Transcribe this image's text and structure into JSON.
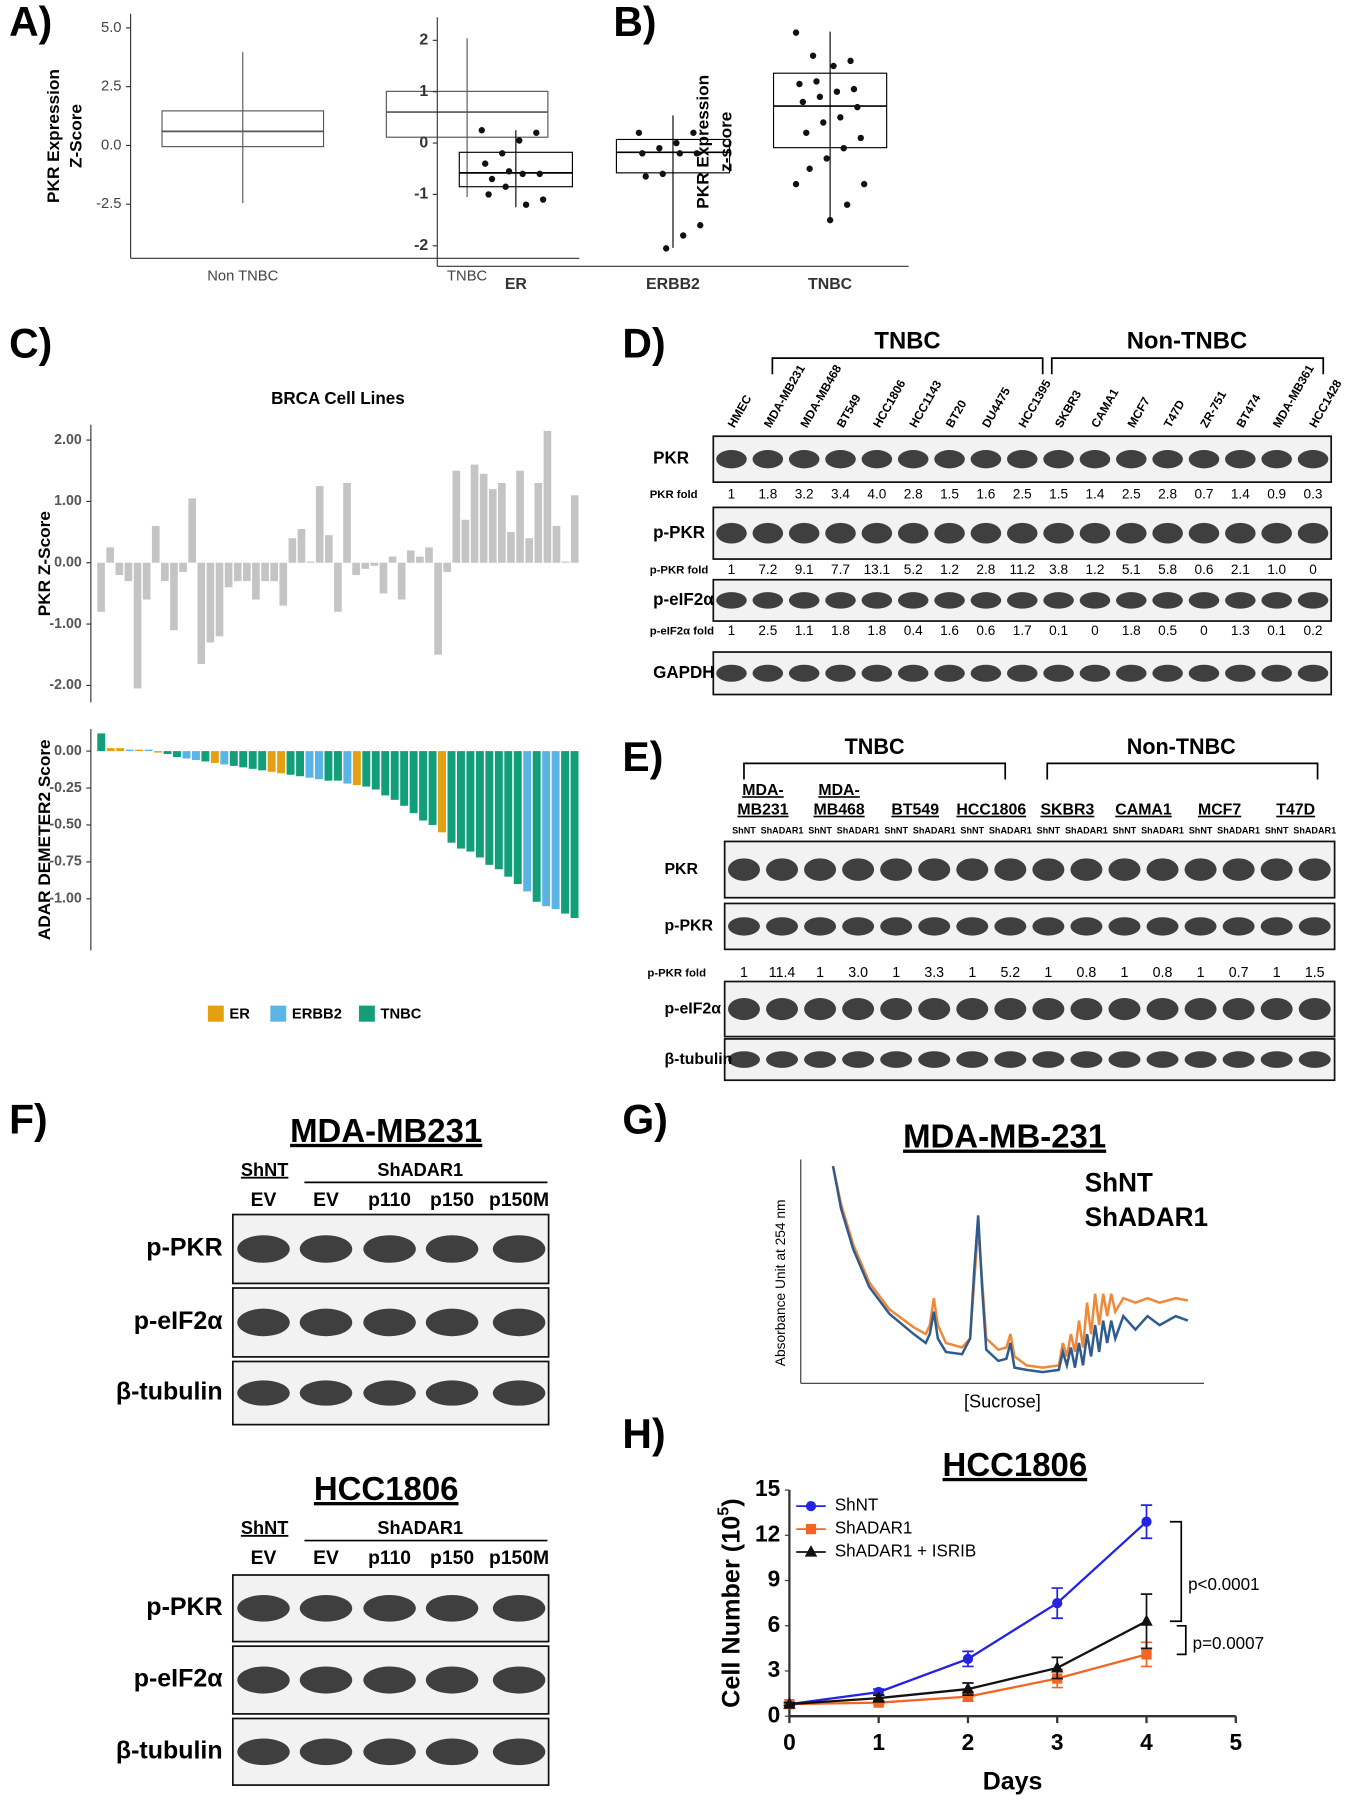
{
  "panel_labels": [
    "A)",
    "B)",
    "C)",
    "D)",
    "E)",
    "F)",
    "G)",
    "H)"
  ],
  "chart_data": [
    {
      "type": "box",
      "ylabel": [
        "PKR Expression",
        "Z-Score"
      ],
      "categories": [
        "Non TNBC",
        "TNBC"
      ],
      "boxes": [
        {
          "low": -2.45,
          "q1": -0.05,
          "median": 0.6,
          "q3": 1.47,
          "high": 3.97
        },
        {
          "low": -2.2,
          "q1": 0.35,
          "median": 1.42,
          "q3": 2.3,
          "high": 4.56
        }
      ],
      "ylim": [
        -4.8,
        5.6
      ],
      "yticks": [
        -2.5,
        {
          "value": 0,
          "label": "0.0"
        },
        2.5,
        {
          "value": 5,
          "label": "5.0"
        }
      ],
      "color": "#555555"
    },
    {
      "type": "box",
      "ylabel": [
        "PKR Expression",
        "z-score"
      ],
      "categories": [
        "ER",
        "ERBB2",
        "TNBC"
      ],
      "boxes": [
        {
          "low": -1.25,
          "q1": -0.85,
          "median": -0.58,
          "q3": -0.18,
          "high": 0.25
        },
        {
          "low": -2.04,
          "q1": -0.58,
          "median": -0.18,
          "q3": 0.07,
          "high": 0.54
        },
        {
          "low": -1.52,
          "q1": -0.09,
          "median": 0.72,
          "q3": 1.36,
          "high": 2.17
        }
      ],
      "points": [
        [
          0.25,
          0.2,
          0.05,
          -0.2,
          -0.4,
          -0.6,
          -0.6,
          -0.85,
          -1.0,
          -1.1,
          -1.2,
          -0.55,
          -0.7
        ],
        [
          0.2,
          0.2,
          0.0,
          -0.1,
          -0.2,
          -0.2,
          -0.2,
          -0.6,
          -0.65,
          -1.6,
          -1.8,
          -2.05
        ],
        [
          2.15,
          1.6,
          1.5,
          1.2,
          1.15,
          1.05,
          1.0,
          0.9,
          0.8,
          0.7,
          0.5,
          0.4,
          0.2,
          0.1,
          -0.1,
          -0.3,
          -0.5,
          -0.8,
          -1.2,
          -1.5,
          1.7,
          -0.8
        ]
      ],
      "ylim": [
        -2.4,
        2.45
      ],
      "yticks": [
        -2,
        -1,
        0,
        1,
        2
      ],
      "color": "#000000"
    },
    {
      "type": "bar",
      "title": "BRCA Cell Lines",
      "ylabel": "PKR Z-Score",
      "values": [
        -0.8,
        0.25,
        -0.2,
        -0.3,
        -2.05,
        -0.6,
        0.6,
        -0.3,
        -1.1,
        -0.15,
        1.05,
        -1.65,
        -1.3,
        -1.2,
        -0.4,
        -0.3,
        -0.3,
        -0.6,
        -0.3,
        -0.3,
        -0.7,
        0.4,
        0.55,
        0.02,
        1.25,
        0.45,
        -0.8,
        1.3,
        -0.2,
        -0.1,
        -0.05,
        -0.5,
        0.1,
        -0.6,
        0.2,
        0.1,
        0.25,
        -1.5,
        -0.15,
        1.5,
        0.7,
        1.6,
        1.45,
        1.2,
        1.3,
        0.5,
        1.5,
        0.4,
        1.3,
        2.15,
        0.6,
        0.02,
        1.1
      ],
      "color": "#c4c4c4",
      "ylim": [
        -2.28,
        2.25
      ],
      "yticks": [
        {
          "value": -2,
          "label": "-2.00"
        },
        {
          "value": -1,
          "label": "-1.00"
        },
        {
          "value": 0,
          "label": "0.00"
        },
        {
          "value": 1,
          "label": "1.00"
        },
        {
          "value": 2,
          "label": "2.00"
        }
      ]
    },
    {
      "type": "bar",
      "ylabel": "ADAR DEMETER2 Score",
      "values": [
        0.12,
        0.02,
        0.02,
        0.01,
        0.01,
        0.01,
        -0.01,
        -0.02,
        -0.04,
        -0.05,
        -0.06,
        -0.07,
        -0.08,
        -0.09,
        -0.1,
        -0.11,
        -0.12,
        -0.13,
        -0.14,
        -0.15,
        -0.16,
        -0.17,
        -0.18,
        -0.19,
        -0.2,
        -0.2,
        -0.22,
        -0.23,
        -0.24,
        -0.26,
        -0.3,
        -0.33,
        -0.37,
        -0.42,
        -0.47,
        -0.5,
        -0.55,
        -0.62,
        -0.66,
        -0.68,
        -0.72,
        -0.77,
        -0.8,
        -0.85,
        -0.9,
        -0.95,
        -1.02,
        -1.05,
        -1.07,
        -1.1,
        -1.13
      ],
      "groups": [
        "TNBC",
        "ER",
        "ER",
        "ERBB2",
        "ER",
        "ERBB2",
        "ER",
        "TNBC",
        "TNBC",
        "ERBB2",
        "ERBB2",
        "TNBC",
        "ER",
        "ERBB2",
        "TNBC",
        "TNBC",
        "TNBC",
        "TNBC",
        "ER",
        "ER",
        "TNBC",
        "TNBC",
        "ERBB2",
        "ERBB2",
        "TNBC",
        "TNBC",
        "ERBB2",
        "ER",
        "TNBC",
        "TNBC",
        "TNBC",
        "TNBC",
        "TNBC",
        "TNBC",
        "TNBC",
        "TNBC",
        "ER",
        "TNBC",
        "TNBC",
        "TNBC",
        "TNBC",
        "TNBC",
        "TNBC",
        "TNBC",
        "TNBC",
        "ERBB2",
        "TNBC",
        "ERBB2",
        "ERBB2",
        "TNBC",
        "TNBC"
      ],
      "legend": [
        {
          "name": "ER",
          "color": "#E3A010"
        },
        {
          "name": "ERBB2",
          "color": "#5AB4E5"
        },
        {
          "name": "TNBC",
          "color": "#129E78"
        }
      ],
      "legend_position": "bottom",
      "ylim": [
        -1.35,
        0.15
      ],
      "yticks": [
        {
          "value": -1,
          "label": "-1.00"
        },
        -0.75,
        {
          "value": -0.5,
          "label": "-0.50"
        },
        -0.25,
        {
          "value": 0,
          "label": "0.00"
        }
      ]
    },
    {
      "type": "line",
      "title": "MDA-MB-231",
      "xlabel": "[Sucrose]",
      "ylabel": "Absorbance Unit at 254 nm",
      "x": [
        8,
        10,
        13,
        17,
        22,
        28,
        31,
        32,
        33,
        34,
        36,
        40,
        42,
        43,
        44,
        45,
        46,
        49,
        51,
        52,
        53,
        56,
        60,
        64,
        65,
        66,
        67,
        68,
        69,
        70,
        71,
        72,
        73,
        74,
        75,
        76,
        77,
        78,
        80,
        83,
        86,
        89,
        93,
        96
      ],
      "series": [
        {
          "name": "ShNT",
          "color": "#F0883A",
          "values": [
            97,
            80,
            62,
            45,
            33,
            25,
            22,
            26,
            38,
            26,
            18,
            16,
            20,
            45,
            70,
            45,
            20,
            15,
            16,
            22,
            12,
            8,
            7,
            8,
            18,
            12,
            22,
            14,
            28,
            16,
            36,
            22,
            40,
            26,
            40,
            30,
            40,
            32,
            38,
            36,
            38,
            36,
            38,
            37
          ]
        },
        {
          "name": "ShADAR1",
          "color": "#2F5B8F",
          "values": [
            97,
            78,
            60,
            43,
            31,
            22,
            18,
            22,
            32,
            20,
            14,
            13,
            20,
            50,
            75,
            42,
            15,
            10,
            11,
            18,
            7,
            6,
            5,
            6,
            14,
            8,
            16,
            7,
            18,
            8,
            22,
            12,
            26,
            14,
            28,
            18,
            28,
            20,
            30,
            24,
            30,
            26,
            30,
            28
          ]
        }
      ],
      "xlim": [
        0,
        100
      ],
      "ylim": [
        0,
        100
      ]
    },
    {
      "type": "line",
      "title": "HCC1806",
      "xlabel": "Days",
      "ylabel": [
        "Cell Number (10",
        "5",
        ")"
      ],
      "x": [
        0,
        1,
        2,
        3,
        4
      ],
      "series": [
        {
          "name": "ShNT",
          "color": "#2323E0",
          "marker": "circle",
          "values": [
            0.8,
            1.6,
            3.8,
            7.5,
            12.9
          ],
          "errors": [
            0.1,
            0.2,
            0.5,
            1.0,
            1.1
          ]
        },
        {
          "name": "ShADAR1",
          "color": "#F26522",
          "marker": "square",
          "values": [
            0.8,
            0.9,
            1.3,
            2.5,
            4.1
          ],
          "errors": [
            0.1,
            0.1,
            0.3,
            0.6,
            0.8
          ]
        },
        {
          "name": "ShADAR1 + ISRIB",
          "color": "#111111",
          "marker": "triangle",
          "values": [
            0.8,
            1.2,
            1.8,
            3.2,
            6.3
          ],
          "errors": [
            0.1,
            0.2,
            0.4,
            0.7,
            1.8
          ]
        }
      ],
      "annotations": [
        "p<0.0001",
        "p=0.0007"
      ],
      "xlim": [
        0,
        5
      ],
      "ylim": [
        0,
        15
      ],
      "xticks": [
        0,
        1,
        2,
        3,
        4,
        5
      ],
      "yticks": [
        0,
        3,
        6,
        9,
        12,
        15
      ]
    }
  ],
  "blot_d": {
    "groups": [
      {
        "name": "TNBC",
        "color": "#000000"
      },
      {
        "name": "Non-TNBC",
        "color": "#4BB3E6"
      }
    ],
    "lanes": [
      "HMEC",
      "MDA-MB231",
      "MDA-MB468",
      "BT549",
      "HCC1806",
      "HCC1143",
      "BT20",
      "DU4475",
      "HCC1395",
      "SKBR3",
      "CAMA1",
      "MCF7",
      "T47D",
      "ZR-751",
      "BT474",
      "MDA-MB361",
      "HCC1428"
    ],
    "rows": [
      {
        "label": "PKR",
        "fold_label": "PKR fold",
        "folds": [
          "1",
          "1.8",
          "3.2",
          "3.4",
          "4.0",
          "2.8",
          "1.5",
          "1.6",
          "2.5",
          "1.5",
          "1.4",
          "2.5",
          "2.8",
          "0.7",
          "1.4",
          "0.9",
          "0.3"
        ]
      },
      {
        "label": "p-PKR",
        "fold_label": "p-PKR fold",
        "folds": [
          "1",
          "7.2",
          "9.1",
          "7.7",
          "13.1",
          "5.2",
          "1.2",
          "2.8",
          "11.2",
          "3.8",
          "1.2",
          "5.1",
          "5.8",
          "0.6",
          "2.1",
          "1.0",
          "0"
        ]
      },
      {
        "label": "p-eIF2α",
        "fold_label": "p-eIF2α fold",
        "folds": [
          "1",
          "2.5",
          "1.1",
          "1.8",
          "1.8",
          "0.4",
          "1.6",
          "0.6",
          "1.7",
          "0.1",
          "0",
          "1.8",
          "0.5",
          "0",
          "1.3",
          "0.1",
          "0.2"
        ]
      },
      {
        "label": "GAPDH"
      }
    ]
  },
  "blot_e": {
    "groups": [
      {
        "name": "TNBC",
        "color": "#000000"
      },
      {
        "name": "Non-TNBC",
        "color": "#4BB3E6"
      }
    ],
    "cell_lines": [
      [
        "MDA-",
        "MB231"
      ],
      [
        "MDA-",
        "MB468"
      ],
      [
        "BT549"
      ],
      [
        "HCC1806"
      ],
      [
        "SKBR3"
      ],
      [
        "CAMA1"
      ],
      [
        "MCF7"
      ],
      [
        "T47D"
      ]
    ],
    "lane_labels": [
      "ShNT",
      "ShADAR1"
    ],
    "rows": [
      {
        "label": "PKR"
      },
      {
        "label": "p-PKR",
        "fold_label": "p-PKR fold",
        "folds": [
          "1",
          "11.4",
          "1",
          "3.0",
          "1",
          "3.3",
          "1",
          "5.2",
          "1",
          "0.8",
          "1",
          "0.8",
          "1",
          "0.7",
          "1",
          "1.5"
        ]
      },
      {
        "label": "p-eIF2α"
      },
      {
        "label": "β-tubulin"
      }
    ]
  },
  "blot_f": [
    {
      "title": "MDA-MB231",
      "control": "ShNT",
      "treatment": "ShADAR1",
      "lanes": [
        "EV",
        "EV",
        "p110",
        "p150",
        "p150M"
      ],
      "rows": [
        "p-PKR",
        "p-eIF2α",
        "β-tubulin"
      ]
    },
    {
      "title": "HCC1806",
      "control": "ShNT",
      "treatment": "ShADAR1",
      "lanes": [
        "EV",
        "EV",
        "p110",
        "p150",
        "p150M"
      ],
      "rows": [
        "p-PKR",
        "p-eIF2α",
        "β-tubulin"
      ]
    }
  ]
}
